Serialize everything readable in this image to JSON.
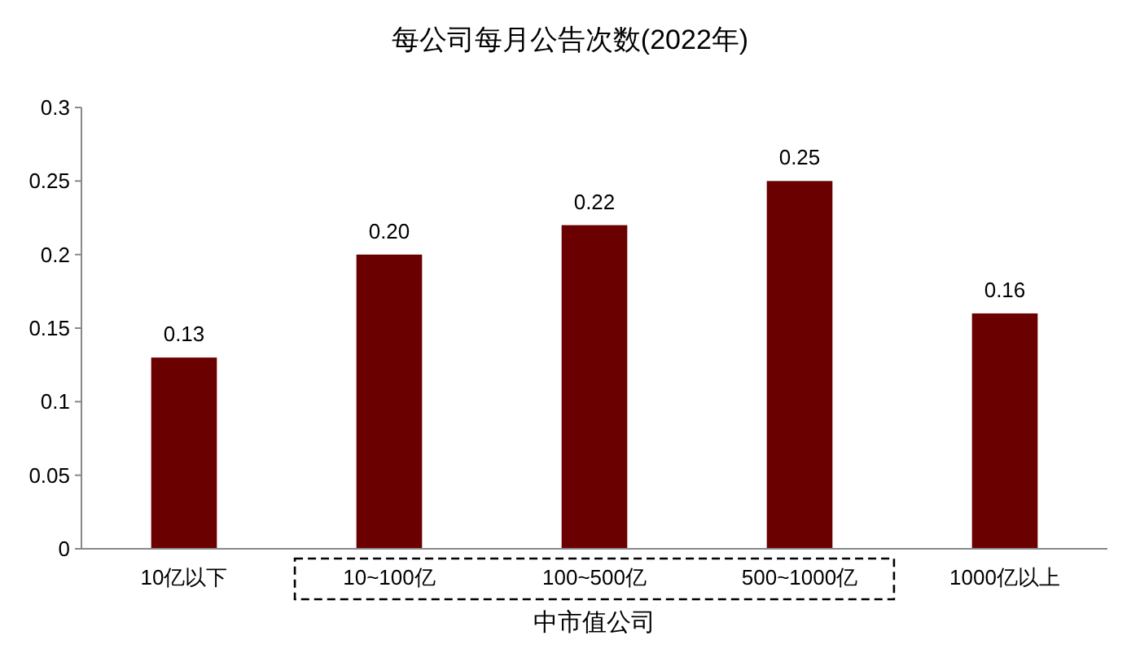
{
  "chart_data": {
    "type": "bar",
    "title": "每公司每月公告次数(2022年)",
    "categories": [
      "10亿以下",
      "10~100亿",
      "100~500亿",
      "500~1000亿",
      "1000亿以上"
    ],
    "values": [
      0.13,
      0.2,
      0.22,
      0.25,
      0.16
    ],
    "color": "#6b0000",
    "value_labels": [
      "0.13",
      "0.20",
      "0.22",
      "0.25",
      "0.16"
    ],
    "ylim": [
      0,
      0.3
    ],
    "yticks": [
      0,
      {
        "value": 0.05,
        "label": "0.05"
      },
      {
        "value": 0.1,
        "label": "0.1"
      },
      {
        "value": 0.15,
        "label": "0.15"
      },
      {
        "value": 0.2,
        "label": "0.2"
      },
      {
        "value": 0.25,
        "label": "0.25"
      },
      {
        "value": 0.3,
        "label": "0.3"
      }
    ],
    "grid": false,
    "annotations": [
      "中市值公司"
    ]
  }
}
